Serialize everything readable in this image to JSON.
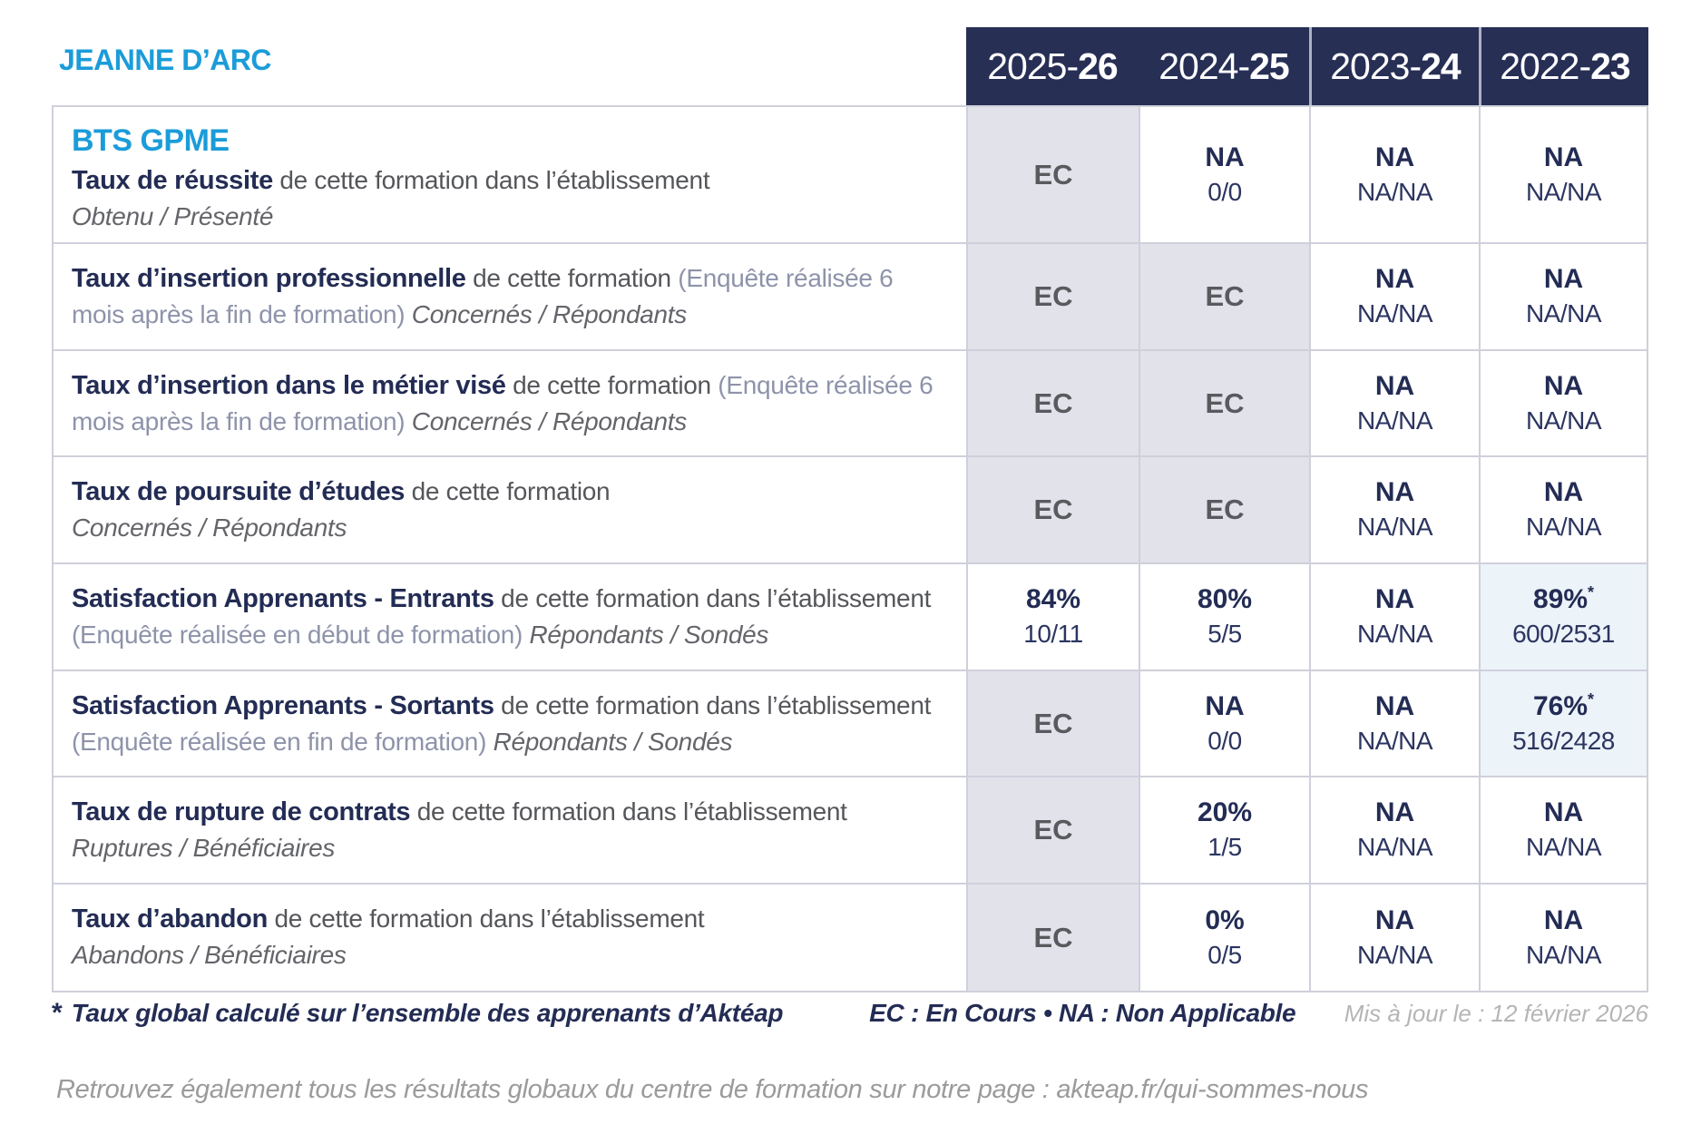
{
  "brand": "JEANNE D’ARC",
  "colors": {
    "navy": "#272f55",
    "cyan": "#1b9cd9",
    "ec_cell_bg": "#e2e2ea",
    "star_cell_bg": "#ecf3f9",
    "grid_border": "#cfd0db",
    "gray_text": "#55565a",
    "light_gray": "#b5b5b7"
  },
  "table": {
    "col_headers": [
      {
        "prefix": "2025-",
        "bold": "26"
      },
      {
        "prefix": "2024-",
        "bold": "25"
      },
      {
        "prefix": "2023-",
        "bold": "24"
      },
      {
        "prefix": "2022-",
        "bold": "23"
      }
    ],
    "rows": [
      {
        "heading": "BTS GPME",
        "title": "Taux de réussite",
        "text": " de cette formation dans l’établissement",
        "paren": "",
        "sub": "Obtenu / Présenté",
        "sub_inline": false,
        "cells": [
          {
            "main": "EC",
            "sub": "",
            "bg": "ec"
          },
          {
            "main": "NA",
            "sub": "0/0",
            "bg": "white"
          },
          {
            "main": "NA",
            "sub": "NA/NA",
            "bg": "white"
          },
          {
            "main": "NA",
            "sub": "NA/NA",
            "bg": "white"
          }
        ]
      },
      {
        "heading": "",
        "title": "Taux d’insertion professionnelle",
        "text": " de cette formation ",
        "paren": "(Enquête réalisée 6 mois après la fin de formation) ",
        "sub": "Concernés / Répondants",
        "sub_inline": true,
        "cells": [
          {
            "main": "EC",
            "sub": "",
            "bg": "ec"
          },
          {
            "main": "EC",
            "sub": "",
            "bg": "ec"
          },
          {
            "main": "NA",
            "sub": "NA/NA",
            "bg": "white"
          },
          {
            "main": "NA",
            "sub": "NA/NA",
            "bg": "white"
          }
        ]
      },
      {
        "heading": "",
        "title": "Taux d’insertion dans le métier visé",
        "text": " de cette formation ",
        "paren": "(Enquête réalisée 6 mois après la fin de formation) ",
        "sub": "Concernés / Répondants",
        "sub_inline": true,
        "cells": [
          {
            "main": "EC",
            "sub": "",
            "bg": "ec"
          },
          {
            "main": "EC",
            "sub": "",
            "bg": "ec"
          },
          {
            "main": "NA",
            "sub": "NA/NA",
            "bg": "white"
          },
          {
            "main": "NA",
            "sub": "NA/NA",
            "bg": "white"
          }
        ]
      },
      {
        "heading": "",
        "title": "Taux de poursuite d’études",
        "text": " de cette formation",
        "paren": "",
        "sub": "Concernés / Répondants",
        "sub_inline": false,
        "cells": [
          {
            "main": "EC",
            "sub": "",
            "bg": "ec"
          },
          {
            "main": "EC",
            "sub": "",
            "bg": "ec"
          },
          {
            "main": "NA",
            "sub": "NA/NA",
            "bg": "white"
          },
          {
            "main": "NA",
            "sub": "NA/NA",
            "bg": "white"
          }
        ]
      },
      {
        "heading": "",
        "title": "Satisfaction Apprenants - Entrants",
        "text": " de cette formation dans l’établissement ",
        "paren": "(Enquête réalisée en début de formation) ",
        "sub": "Répondants / Sondés",
        "sub_inline": true,
        "cells": [
          {
            "main": "84%",
            "sub": "10/11",
            "bg": "white"
          },
          {
            "main": "80%",
            "sub": "5/5",
            "bg": "white"
          },
          {
            "main": "NA",
            "sub": "NA/NA",
            "bg": "white"
          },
          {
            "main": "89%",
            "star": true,
            "sub": "600/2531",
            "bg": "star"
          }
        ]
      },
      {
        "heading": "",
        "title": "Satisfaction Apprenants - Sortants",
        "text": " de cette formation dans l’établissement ",
        "paren": "(Enquête réalisée en fin de formation) ",
        "sub": "Répondants / Sondés",
        "sub_inline": true,
        "cells": [
          {
            "main": "EC",
            "sub": "",
            "bg": "ec"
          },
          {
            "main": "NA",
            "sub": "0/0",
            "bg": "white"
          },
          {
            "main": "NA",
            "sub": "NA/NA",
            "bg": "white"
          },
          {
            "main": "76%",
            "star": true,
            "sub": "516/2428",
            "bg": "star"
          }
        ]
      },
      {
        "heading": "",
        "title": "Taux de rupture de contrats",
        "text": " de cette formation dans l’établissement",
        "paren": "",
        "sub": "Ruptures / Bénéficiaires",
        "sub_inline": false,
        "cells": [
          {
            "main": "EC",
            "sub": "",
            "bg": "ec"
          },
          {
            "main": "20%",
            "sub": "1/5",
            "bg": "white"
          },
          {
            "main": "NA",
            "sub": "NA/NA",
            "bg": "white"
          },
          {
            "main": "NA",
            "sub": "NA/NA",
            "bg": "white"
          }
        ]
      },
      {
        "heading": "",
        "title": "Taux d’abandon",
        "text": " de cette formation dans l’établissement",
        "paren": "",
        "sub": "Abandons / Bénéficiaires",
        "sub_inline": false,
        "cells": [
          {
            "main": "EC",
            "sub": "",
            "bg": "ec"
          },
          {
            "main": "0%",
            "sub": "0/5",
            "bg": "white"
          },
          {
            "main": "NA",
            "sub": "NA/NA",
            "bg": "white"
          },
          {
            "main": "NA",
            "sub": "NA/NA",
            "bg": "white"
          }
        ]
      }
    ]
  },
  "footnote": {
    "star": "*",
    "text": "Taux global calculé sur l’ensemble des apprenants d’Aktéap",
    "legend": "EC : En Cours  •  NA : Non Applicable",
    "updated": "Mis à jour le : 12 février 2026"
  },
  "bottom_note": "Retrouvez également tous les résultats globaux du centre de formation sur notre page : akteap.fr/qui-sommes-nous"
}
